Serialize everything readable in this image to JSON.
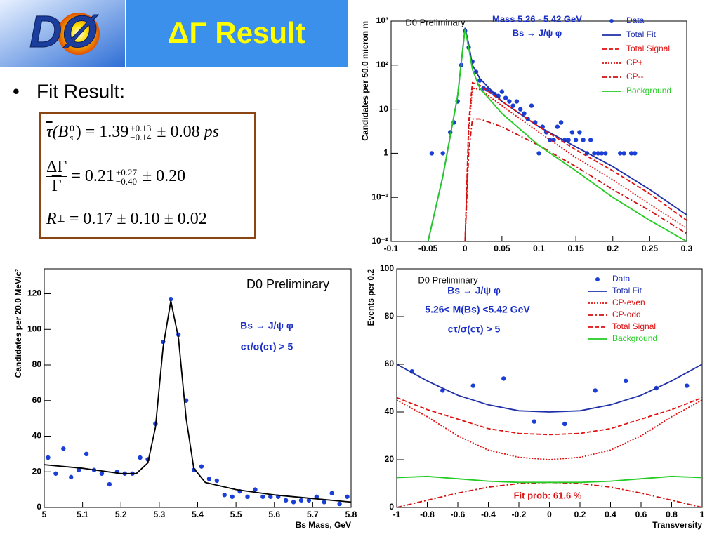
{
  "slide": {
    "logo_text": "DØ",
    "title": "ΔΓ Result",
    "bullet": "Fit Result:",
    "equations": [
      {
        "symbol": "τ",
        "arg": "(B",
        "sub": "s",
        "sup": "0",
        "close": ")",
        "eq": "=",
        "value": "1.39",
        "plus": "+0.13",
        "minus": "−0.14",
        "error": "± 0.08",
        "unit": "ps"
      },
      {
        "numerator": "ΔΓ",
        "denominator": "Γ",
        "eq": "=",
        "value": "0.21",
        "plus": "+0.27",
        "minus": "−0.40",
        "error": "± 0.20"
      },
      {
        "symbol": "R",
        "sub": "⊥",
        "eq": "=",
        "value": "0.17 ± 0.10 ± 0.02"
      }
    ]
  },
  "chart_data": [
    {
      "type": "line",
      "log_y": true,
      "y_label": "Candidates per 50.0 micron m",
      "legend": "upper right",
      "annotations": [
        "Mass 5.26 - 5.42 GeV",
        "Bs → J/ψ φ",
        "D0 Preliminary"
      ],
      "xlim": [
        -0.1,
        0.3
      ],
      "xticks": [
        -0.1,
        -0.05,
        0,
        0.05,
        0.1,
        0.15,
        0.2,
        0.25,
        0.3
      ],
      "ylim": [
        0.01,
        1000
      ],
      "yticks": [
        {
          "value": 0.01,
          "label": "10⁻²"
        },
        {
          "value": 0.1,
          "label": "10⁻¹"
        },
        1,
        10,
        {
          "value": 100,
          "label": "10²"
        },
        {
          "value": 1000,
          "label": "10³"
        }
      ],
      "series": [
        {
          "name": "Data",
          "style": "markers",
          "color": "#1a3fd6",
          "x": [
            -0.045,
            -0.03,
            -0.02,
            -0.015,
            -0.01,
            -0.005,
            0,
            0.005,
            0.01,
            0.015,
            0.02,
            0.025,
            0.03,
            0.035,
            0.04,
            0.045,
            0.05,
            0.055,
            0.06,
            0.065,
            0.07,
            0.075,
            0.08,
            0.085,
            0.09,
            0.095,
            0.1,
            0.105,
            0.11,
            0.115,
            0.12,
            0.125,
            0.13,
            0.135,
            0.14,
            0.145,
            0.15,
            0.155,
            0.16,
            0.165,
            0.17,
            0.175,
            0.18,
            0.185,
            0.19,
            0.21,
            0.215,
            0.225,
            0.23
          ],
          "values": [
            1,
            1,
            3,
            5,
            15,
            100,
            600,
            250,
            120,
            70,
            45,
            30,
            28,
            25,
            22,
            20,
            25,
            18,
            15,
            12,
            15,
            10,
            8,
            6,
            12,
            5,
            1,
            4,
            3,
            2,
            2,
            4,
            5,
            2,
            2,
            3,
            2,
            3,
            2,
            1,
            2,
            1,
            1,
            1,
            1,
            1,
            1,
            1,
            1
          ]
        },
        {
          "name": "Total Fit",
          "style": "line",
          "dash": "solid",
          "color": "#1f2fa8",
          "x": [
            -0.05,
            -0.03,
            -0.01,
            0,
            0.005,
            0.01,
            0.02,
            0.05,
            0.1,
            0.15,
            0.2,
            0.25,
            0.3
          ],
          "values": [
            0.01,
            0.3,
            20,
            700,
            300,
            100,
            50,
            15,
            4,
            1.4,
            0.5,
            0.15,
            0.04
          ]
        },
        {
          "name": "Total Signal",
          "style": "line",
          "dash": "dashed",
          "color": "#e01010",
          "x": [
            0,
            0.005,
            0.01,
            0.02,
            0.05,
            0.1,
            0.15,
            0.2,
            0.25,
            0.3
          ],
          "values": [
            0.01,
            5,
            40,
            35,
            15,
            4,
            1.2,
            0.4,
            0.12,
            0.03
          ]
        },
        {
          "name": "CP+",
          "style": "line",
          "dash": "dotted",
          "color": "#e01010",
          "x": [
            0,
            0.005,
            0.01,
            0.02,
            0.05,
            0.1,
            0.15,
            0.2,
            0.25,
            0.3
          ],
          "values": [
            0.01,
            3,
            30,
            28,
            12,
            3,
            0.8,
            0.25,
            0.07,
            0.02
          ]
        },
        {
          "name": "CP--",
          "style": "line",
          "dash": "dashdot",
          "color": "#d01010",
          "x": [
            0,
            0.005,
            0.01,
            0.02,
            0.05,
            0.1,
            0.15,
            0.2,
            0.25,
            0.3
          ],
          "values": [
            0.01,
            1,
            6,
            6,
            4,
            1.5,
            0.5,
            0.15,
            0.05,
            0.015
          ]
        },
        {
          "name": "Background",
          "style": "line",
          "dash": "solid",
          "color": "#22cc22",
          "x": [
            -0.05,
            -0.03,
            -0.01,
            0,
            0.005,
            0.01,
            0.02,
            0.05,
            0.1,
            0.15,
            0.2,
            0.25,
            0.3
          ],
          "values": [
            0.01,
            0.3,
            20,
            650,
            250,
            80,
            30,
            8,
            1.5,
            0.4,
            0.1,
            0.03,
            0.01
          ]
        }
      ]
    },
    {
      "type": "line",
      "x_label": "Bs Mass,  GeV",
      "y_label": "Candidates per 20.0 MeV/c²",
      "annotations": [
        "D0 Preliminary",
        "Bs → J/ψ φ",
        "cτ/σ(cτ) > 5"
      ],
      "xlim": [
        5,
        5.8
      ],
      "xticks": [
        5,
        5.1,
        5.2,
        5.3,
        5.4,
        5.5,
        5.6,
        5.7,
        5.8
      ],
      "ylim": [
        0,
        134
      ],
      "yticks": [
        0,
        20,
        40,
        60,
        80,
        100,
        120
      ],
      "series": [
        {
          "style": "markers",
          "color": "#1a3fd6",
          "x": [
            5.01,
            5.03,
            5.05,
            5.07,
            5.09,
            5.11,
            5.13,
            5.15,
            5.17,
            5.19,
            5.21,
            5.23,
            5.25,
            5.27,
            5.29,
            5.31,
            5.33,
            5.35,
            5.37,
            5.39,
            5.41,
            5.43,
            5.45,
            5.47,
            5.49,
            5.51,
            5.53,
            5.55,
            5.57,
            5.59,
            5.61,
            5.63,
            5.65,
            5.67,
            5.69,
            5.71,
            5.73,
            5.75,
            5.77,
            5.79
          ],
          "values": [
            28,
            19,
            33,
            17,
            21,
            30,
            21,
            19,
            13,
            20,
            19,
            19,
            28,
            27,
            47,
            93,
            117,
            97,
            60,
            21,
            23,
            16,
            15,
            7,
            6,
            9,
            6,
            10,
            6,
            6,
            6,
            4,
            3,
            4,
            4,
            6,
            3,
            8,
            2,
            6
          ]
        },
        {
          "style": "line",
          "dash": "solid",
          "color": "#000000",
          "x": [
            5,
            5.1,
            5.2,
            5.24,
            5.27,
            5.29,
            5.31,
            5.33,
            5.35,
            5.37,
            5.39,
            5.42,
            5.5,
            5.6,
            5.7,
            5.8
          ],
          "values": [
            24,
            22,
            19,
            19,
            25,
            45,
            90,
            116,
            95,
            50,
            22,
            14,
            10,
            7,
            5,
            3
          ]
        }
      ]
    },
    {
      "type": "line",
      "x_label": "Transversity",
      "y_label": "Events per 0.2",
      "legend": "upper right",
      "annotations": [
        "D0 Preliminary",
        "Bs → J/ψ φ",
        "5.26< M(Bs) <5.42 GeV",
        "cτ/σ(cτ) > 5",
        "Fit prob: 61.6 %"
      ],
      "xlim": [
        -1,
        1
      ],
      "xticks": [
        -1,
        -0.8,
        -0.6,
        -0.4,
        -0.2,
        0,
        0.2,
        0.4,
        0.6,
        0.8,
        1
      ],
      "ylim": [
        0,
        100
      ],
      "yticks": [
        0,
        20,
        40,
        60,
        80,
        100
      ],
      "series": [
        {
          "name": "Data",
          "style": "markers",
          "color": "#1a3fd6",
          "x": [
            -0.9,
            -0.7,
            -0.5,
            -0.3,
            -0.1,
            0.1,
            0.3,
            0.5,
            0.7,
            0.9
          ],
          "values": [
            57,
            49,
            51,
            54,
            36,
            35,
            49,
            53,
            50,
            51
          ]
        },
        {
          "name": "Total Fit",
          "style": "line",
          "dash": "solid",
          "color": "#1f2fa8",
          "x": [
            -1,
            -0.8,
            -0.6,
            -0.4,
            -0.2,
            0,
            0.2,
            0.4,
            0.6,
            0.8,
            1
          ],
          "values": [
            60,
            53,
            47,
            43,
            40.5,
            40,
            40.5,
            43,
            47,
            53,
            60
          ]
        },
        {
          "name": "CP-even",
          "style": "line",
          "dash": "dotted",
          "color": "#e01010",
          "x": [
            -1,
            -0.8,
            -0.6,
            -0.4,
            -0.2,
            0,
            0.2,
            0.4,
            0.6,
            0.8,
            1
          ],
          "values": [
            45,
            38,
            30,
            24,
            21,
            20,
            21,
            24,
            30,
            38,
            45
          ]
        },
        {
          "name": "CP-odd",
          "style": "line",
          "dash": "dashdot",
          "color": "#d01010",
          "x": [
            -1,
            -0.8,
            -0.6,
            -0.4,
            -0.2,
            0,
            0.2,
            0.4,
            0.6,
            0.8,
            1
          ],
          "values": [
            0,
            3,
            6,
            8.5,
            10,
            10.5,
            10,
            8.5,
            6,
            3,
            0
          ]
        },
        {
          "name": "Total Signal",
          "style": "line",
          "dash": "dashed",
          "color": "#e01010",
          "x": [
            -1,
            -0.8,
            -0.6,
            -0.4,
            -0.2,
            0,
            0.2,
            0.4,
            0.6,
            0.8,
            1
          ],
          "values": [
            46,
            41,
            37,
            33,
            31,
            30.5,
            31,
            33,
            37,
            41,
            46
          ]
        },
        {
          "name": "Background",
          "style": "line",
          "dash": "solid",
          "color": "#22cc22",
          "x": [
            -1,
            -0.8,
            -0.6,
            -0.4,
            -0.2,
            0,
            0.2,
            0.4,
            0.6,
            0.8,
            1
          ],
          "values": [
            12.5,
            13,
            12,
            11,
            10.5,
            10.5,
            10.5,
            11,
            12,
            13,
            12.5
          ]
        }
      ]
    }
  ]
}
